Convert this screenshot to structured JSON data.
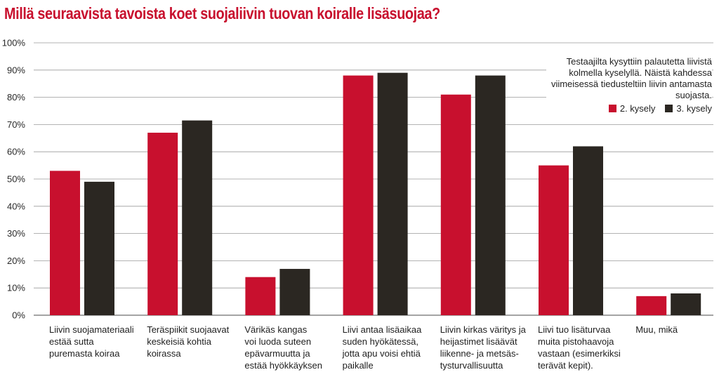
{
  "colors": {
    "series1": "#c8102e",
    "series2": "#2b2722",
    "title": "#c8102e",
    "grid": "#9a9a9a"
  },
  "note": "Testaajilta kysyttiin palautetta liivistä kolmella kyselyllä. Näistä kahdessa viimeisessä tiedusteltiin liivin antamasta suojasta.",
  "chart_data": {
    "type": "bar",
    "title": "Millä seuraavista tavoista koet suojaliivin tuovan koiralle lisäsuojaa?",
    "categories": [
      "Liivin suojamateriaali estää sutta puremasta koiraa",
      "Teräspiikit suojaavat keskeisiä kohtia koirassa",
      "Värikäs kangas voi luoda suteen epävarmuutta ja estää hyökkäyksen",
      "Liivi antaa lisäaikaa suden hyökätessä, jotta apu voisi ehtiä paikalle",
      "Liivin kirkas väritys ja heijastimet lisäävät liikenne- ja metsästysturvallisuutta",
      "Liivi tuo lisäturvaa muita pistohaavoja vastaan (esimerkiksi terävät kepit).",
      "Muu, mikä"
    ],
    "category_lines": [
      [
        "Liivin suojamateriaali",
        "estää sutta",
        "puremasta koiraa"
      ],
      [
        "Teräspiikit suojaavat",
        "keskeisiä kohtia",
        "koirassa"
      ],
      [
        "Värikäs kangas",
        "voi luoda suteen",
        "epävarmuutta ja",
        "estää hyökkäyksen"
      ],
      [
        "Liivi antaa lisäaikaa",
        "suden hyökätessä,",
        "jotta apu voisi ehtiä",
        "paikalle"
      ],
      [
        "Liivin kirkas väritys ja",
        "heijastimet lisäävät",
        "liikenne- ja metsäs-",
        "tysturvallisuutta"
      ],
      [
        "Liivi tuo lisäturvaa",
        "muita pistohaavoja",
        "vastaan (esimerkiksi",
        "terävät kepit)."
      ],
      [
        "Muu, mikä"
      ]
    ],
    "series": [
      {
        "name": "2. kysely",
        "values": [
          53,
          67,
          14,
          88,
          81,
          55,
          7
        ]
      },
      {
        "name": "3. kysely",
        "values": [
          49,
          71.5,
          17,
          89,
          88,
          62,
          8
        ]
      }
    ],
    "ylim": [
      0,
      100
    ],
    "yticks": [
      "0%",
      "10%",
      "20%",
      "30%",
      "40%",
      "50%",
      "60%",
      "70%",
      "80%",
      "90%",
      "100%"
    ],
    "grid": true,
    "legend": "top-right"
  }
}
